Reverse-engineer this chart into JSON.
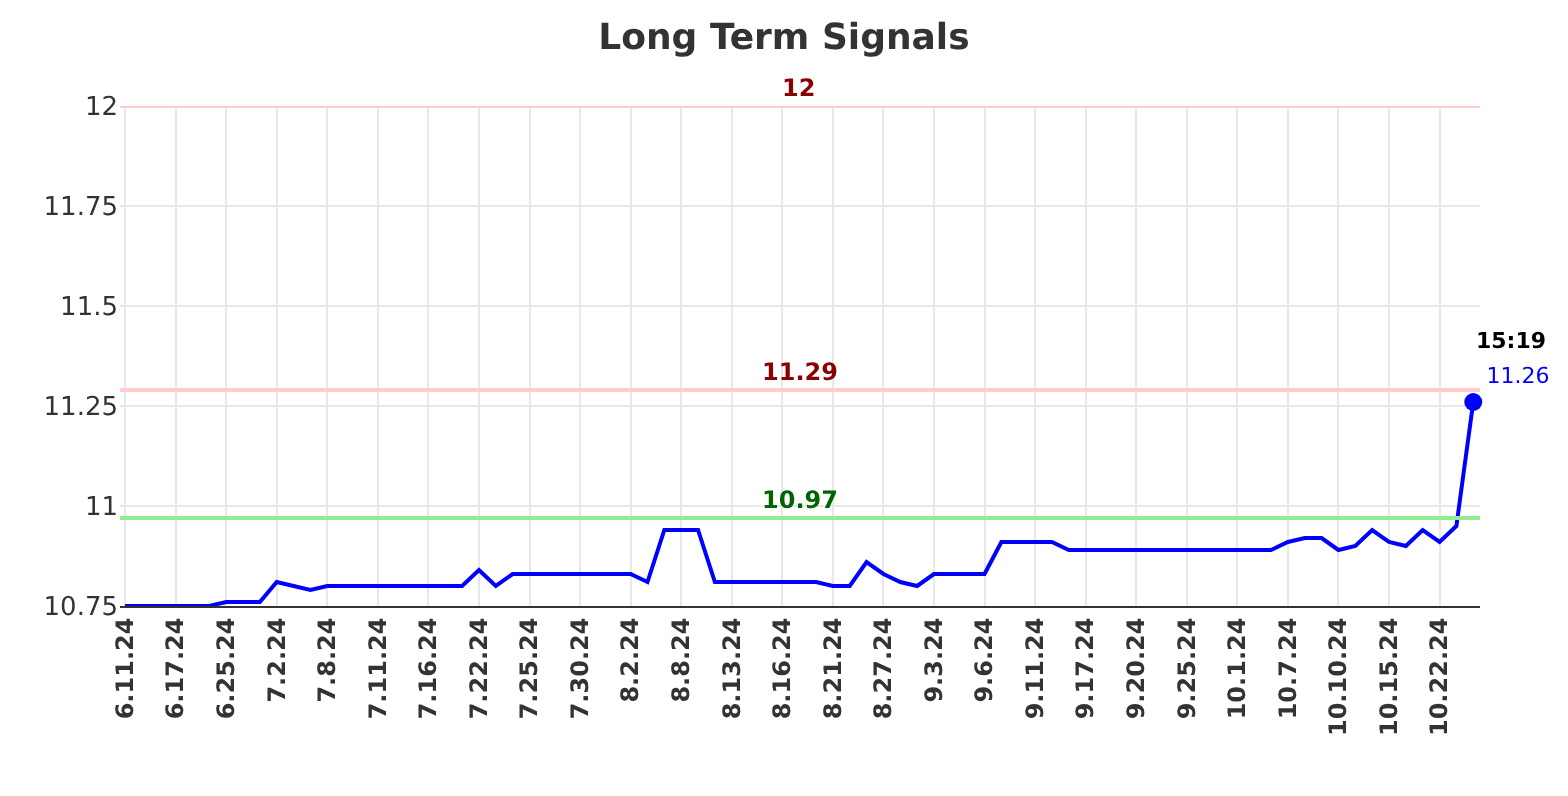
{
  "chart_data": {
    "type": "line",
    "title": "Long Term Signals",
    "categories": [
      "6.11.24",
      null,
      null,
      "6.17.24",
      null,
      null,
      "6.25.24",
      null,
      null,
      "7.2.24",
      null,
      null,
      "7.8.24",
      null,
      null,
      "7.11.24",
      null,
      null,
      "7.16.24",
      null,
      null,
      "7.22.24",
      null,
      null,
      "7.25.24",
      null,
      null,
      "7.30.24",
      null,
      null,
      "8.2.24",
      null,
      null,
      "8.8.24",
      null,
      null,
      "8.13.24",
      null,
      null,
      "8.16.24",
      null,
      null,
      "8.21.24",
      null,
      null,
      "8.27.24",
      null,
      null,
      "9.3.24",
      null,
      null,
      "9.6.24",
      null,
      null,
      "9.11.24",
      null,
      null,
      "9.17.24",
      null,
      null,
      "9.20.24",
      null,
      null,
      "9.25.24",
      null,
      null,
      "10.1.24",
      null,
      null,
      "10.7.24",
      null,
      null,
      "10.10.24",
      null,
      null,
      "10.15.24",
      null,
      null,
      "10.22.24",
      null,
      null
    ],
    "series": [
      {
        "color": "#0000ff",
        "values": [
          10.75,
          10.75,
          10.75,
          10.75,
          10.75,
          10.75,
          10.76,
          10.76,
          10.76,
          10.81,
          10.8,
          10.79,
          10.8,
          10.8,
          10.8,
          10.8,
          10.8,
          10.8,
          10.8,
          10.8,
          10.8,
          10.84,
          10.8,
          10.83,
          10.83,
          10.83,
          10.83,
          10.83,
          10.83,
          10.83,
          10.83,
          10.81,
          10.94,
          10.94,
          10.94,
          10.81,
          10.81,
          10.81,
          10.81,
          10.81,
          10.81,
          10.81,
          10.8,
          10.8,
          10.86,
          10.83,
          10.81,
          10.8,
          10.83,
          10.83,
          10.83,
          10.83,
          10.91,
          10.91,
          10.91,
          10.91,
          10.89,
          10.89,
          10.89,
          10.89,
          10.89,
          10.89,
          10.89,
          10.89,
          10.89,
          10.89,
          10.89,
          10.89,
          10.89,
          10.91,
          10.92,
          10.92,
          10.89,
          10.9,
          10.94,
          10.91,
          10.9,
          10.94,
          10.91,
          10.95,
          11.26
        ],
        "value_labels": [
          null,
          null,
          null,
          null,
          null,
          null,
          null,
          null,
          null,
          null,
          null,
          null,
          null,
          null,
          null,
          null,
          null,
          null,
          null,
          null,
          null,
          null,
          null,
          null,
          null,
          null,
          null,
          null,
          null,
          null,
          null,
          null,
          null,
          null,
          null,
          null,
          null,
          null,
          null,
          null,
          null,
          null,
          null,
          null,
          null,
          null,
          null,
          null,
          null,
          null,
          null,
          null,
          null,
          null,
          null,
          null,
          null,
          null,
          null,
          null,
          null,
          null,
          null,
          null,
          null,
          null,
          null,
          null,
          null,
          null,
          null,
          null,
          null,
          null,
          null,
          null,
          null,
          null,
          null,
          null,
          "11.26"
        ]
      }
    ],
    "annotations": [
      "15:19"
    ],
    "ref_lines": [
      {
        "axis": "y",
        "value": 12,
        "label": "12",
        "color": "#ffcccc"
      },
      {
        "axis": "y",
        "value": 11.29,
        "label": "11.29",
        "color": "#ffcccc"
      },
      {
        "axis": "y",
        "value": 10.97,
        "label": "10.97",
        "color": "#90ee90"
      }
    ],
    "ylim": [
      10.75,
      12
    ],
    "yticks": [
      10.75,
      11,
      11.25,
      11.5,
      11.75,
      12
    ],
    "grid": true
  }
}
